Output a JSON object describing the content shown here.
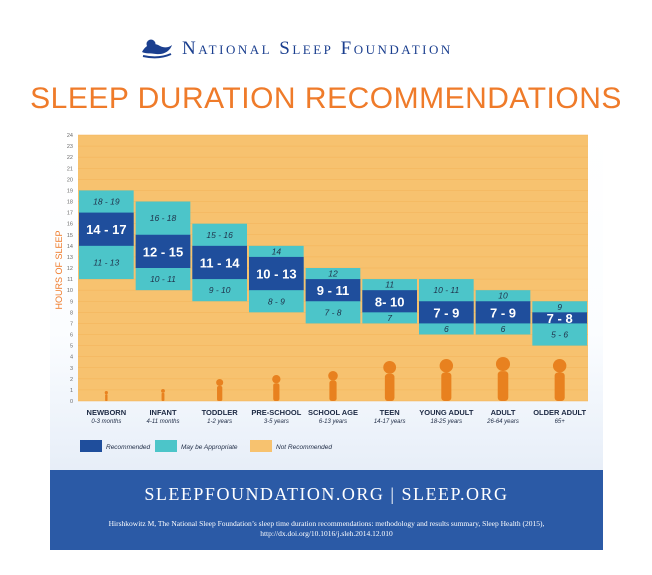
{
  "header": {
    "brand": "National Sleep Foundation",
    "logo_icon": "sleeping-figure-icon",
    "title": "SLEEP DURATION RECOMMENDATIONS"
  },
  "colors": {
    "title": "#ef7b2a",
    "brand": "#1b3f8f",
    "not_recommended": "#f7c26f",
    "may_be_appropriate": "#4cc5c9",
    "recommended": "#1f4e9c",
    "silhouette": "#e8811f",
    "footer": "#2b5aa6"
  },
  "chart_data": {
    "type": "bar",
    "ylabel": "HOURS OF SLEEP",
    "ylim": [
      0,
      24
    ],
    "yticks": [
      "0",
      "1",
      "2",
      "3",
      "4",
      "5",
      "6",
      "7",
      "8",
      "9",
      "10",
      "11",
      "12",
      "13",
      "14",
      "15",
      "16",
      "17",
      "18",
      "19",
      "20",
      "21",
      "22",
      "23",
      "24"
    ],
    "groups": [
      {
        "name": "NEWBORN",
        "age": "0-3 months",
        "recommended": [
          14,
          17
        ],
        "recommended_label": "14 - 17",
        "may_upper": [
          17,
          19
        ],
        "may_upper_label": "18 - 19",
        "may_lower": [
          11,
          14
        ],
        "may_lower_label": "11 - 13",
        "figure": "baby-icon"
      },
      {
        "name": "INFANT",
        "age": "4-11 months",
        "recommended": [
          12,
          15
        ],
        "recommended_label": "12 - 15",
        "may_upper": [
          15,
          18
        ],
        "may_upper_label": "16 - 18",
        "may_lower": [
          10,
          12
        ],
        "may_lower_label": "10 - 11",
        "figure": "crawling-infant-icon"
      },
      {
        "name": "TODDLER",
        "age": "1-2 years",
        "recommended": [
          11,
          14
        ],
        "recommended_label": "11 - 14",
        "may_upper": [
          14,
          16
        ],
        "may_upper_label": "15 - 16",
        "may_lower": [
          9,
          11
        ],
        "may_lower_label": "9 - 10",
        "figure": "toddler-icon"
      },
      {
        "name": "PRE-SCHOOL",
        "age": "3-5 years",
        "recommended": [
          10,
          13
        ],
        "recommended_label": "10 - 13",
        "may_upper": [
          13,
          14
        ],
        "may_upper_label": "14",
        "may_lower": [
          8,
          10
        ],
        "may_lower_label": "8 - 9",
        "figure": "preschooler-icon"
      },
      {
        "name": "SCHOOL AGE",
        "age": "6-13 years",
        "recommended": [
          9,
          11
        ],
        "recommended_label": "9 - 11",
        "may_upper": [
          11,
          12
        ],
        "may_upper_label": "12",
        "may_lower": [
          7,
          9
        ],
        "may_lower_label": "7 - 8",
        "figure": "child-icon"
      },
      {
        "name": "TEEN",
        "age": "14-17 years",
        "recommended": [
          8,
          10
        ],
        "recommended_label": "8- 10",
        "may_upper": [
          10,
          11
        ],
        "may_upper_label": "11",
        "may_lower": [
          7,
          8
        ],
        "may_lower_label": "7",
        "figure": "teen-icon"
      },
      {
        "name": "YOUNG ADULT",
        "age": "18-25 years",
        "recommended": [
          7,
          9
        ],
        "recommended_label": "7 - 9",
        "may_upper": [
          9,
          11
        ],
        "may_upper_label": "10 - 11",
        "may_lower": [
          6,
          7
        ],
        "may_lower_label": "6",
        "figure": "young-adult-icon"
      },
      {
        "name": "ADULT",
        "age": "26-64 years",
        "recommended": [
          7,
          9
        ],
        "recommended_label": "7 - 9",
        "may_upper": [
          9,
          10
        ],
        "may_upper_label": "10",
        "may_lower": [
          6,
          7
        ],
        "may_lower_label": "6",
        "figure": "adult-icon"
      },
      {
        "name": "OLDER ADULT",
        "age": "65+",
        "recommended": [
          7,
          8
        ],
        "recommended_label": "7 - 8",
        "may_upper": [
          8,
          9
        ],
        "may_upper_label": "9",
        "may_lower": [
          5,
          7
        ],
        "may_lower_label": "5 - 6",
        "figure": "older-adult-with-cane-icon"
      }
    ],
    "legend": [
      "Recommended",
      "May be Appropriate",
      "Not Recommended"
    ],
    "legend_position": "bottom-left"
  },
  "footer": {
    "urls": "SLEEPFOUNDATION.ORG  |  SLEEP.ORG",
    "citation_line1": "Hirshkowitz M, The National Sleep Foundation’s sleep time duration recommendations: methodology and results summary, Sleep Health (2015),",
    "citation_line2": "http://dx.doi.org/10.1016/j.sleh.2014.12.010"
  }
}
